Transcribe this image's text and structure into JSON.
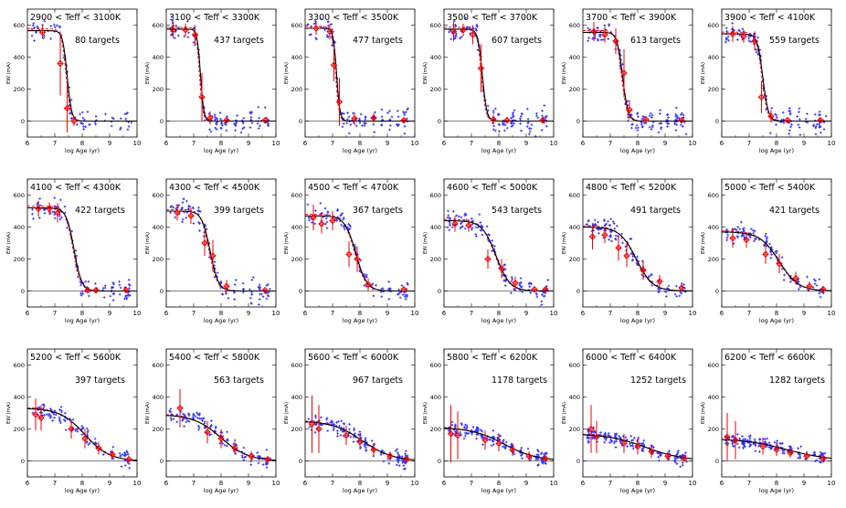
{
  "chart_data": {
    "type": "scatter",
    "xlabel": "log Age (yr)",
    "ylabel": "EW (mA)",
    "xlim": [
      6,
      10
    ],
    "ylim": [
      -100,
      700
    ],
    "xticks": [
      6,
      7,
      8,
      9,
      10
    ],
    "yticks": [
      0,
      200,
      400,
      600
    ],
    "colors": {
      "points": "#3333ff",
      "binned": "#ee0000",
      "fit": "#000000",
      "fit_dashed": "#ee0000"
    },
    "panels": [
      {
        "title": "2900 < Teff < 3100K",
        "count_label": "80 targets",
        "plateau": 565,
        "mid": 7.45,
        "width": 0.08,
        "bins": [
          [
            6.55,
            555,
            40
          ],
          [
            7.2,
            360,
            200
          ],
          [
            7.45,
            80,
            150
          ],
          [
            7.7,
            0,
            30
          ]
        ]
      },
      {
        "title": "3100 < Teff < 3300K",
        "count_label": "437 targets",
        "plateau": 575,
        "mid": 7.25,
        "width": 0.06,
        "bins": [
          [
            6.25,
            570,
            50
          ],
          [
            6.7,
            570,
            40
          ],
          [
            7.05,
            540,
            60
          ],
          [
            7.3,
            150,
            150
          ],
          [
            7.6,
            20,
            40
          ],
          [
            8.2,
            5,
            15
          ],
          [
            9.6,
            5,
            10
          ]
        ]
      },
      {
        "title": "3300 < Teff < 3500K",
        "count_label": "477 targets",
        "plateau": 580,
        "mid": 7.15,
        "width": 0.06,
        "bins": [
          [
            6.4,
            580,
            40
          ],
          [
            6.9,
            560,
            50
          ],
          [
            7.05,
            350,
            100
          ],
          [
            7.25,
            120,
            150
          ],
          [
            7.8,
            15,
            40
          ],
          [
            8.5,
            20,
            30
          ],
          [
            9.6,
            5,
            10
          ]
        ]
      },
      {
        "title": "3500 < Teff < 3700K",
        "count_label": "607 targets",
        "plateau": 575,
        "mid": 7.4,
        "width": 0.08,
        "bins": [
          [
            6.35,
            560,
            60
          ],
          [
            6.7,
            570,
            40
          ],
          [
            7.05,
            540,
            60
          ],
          [
            7.35,
            330,
            150
          ],
          [
            7.8,
            10,
            30
          ],
          [
            8.3,
            5,
            20
          ],
          [
            9.6,
            5,
            10
          ]
        ]
      },
      {
        "title": "3700 < Teff < 3900K",
        "count_label": "613 targets",
        "plateau": 555,
        "mid": 7.45,
        "width": 0.1,
        "bins": [
          [
            6.4,
            560,
            60
          ],
          [
            6.8,
            540,
            50
          ],
          [
            7.2,
            500,
            80
          ],
          [
            7.5,
            300,
            150
          ],
          [
            7.7,
            70,
            60
          ],
          [
            8.3,
            10,
            20
          ],
          [
            9.6,
            5,
            10
          ]
        ]
      },
      {
        "title": "3900 < Teff < 4100K",
        "count_label": "559 targets",
        "plateau": 545,
        "mid": 7.5,
        "width": 0.1,
        "bins": [
          [
            6.4,
            545,
            50
          ],
          [
            6.8,
            530,
            40
          ],
          [
            7.2,
            500,
            60
          ],
          [
            7.45,
            150,
            100
          ],
          [
            7.8,
            30,
            40
          ],
          [
            8.4,
            5,
            20
          ],
          [
            9.6,
            5,
            10
          ]
        ]
      },
      {
        "title": "4100 < Teff < 4300K",
        "count_label": "422 targets",
        "plateau": 520,
        "mid": 7.7,
        "width": 0.14,
        "bins": [
          [
            6.4,
            515,
            50
          ],
          [
            6.8,
            515,
            40
          ],
          [
            7.1,
            490,
            60
          ],
          [
            8.2,
            5,
            20
          ],
          [
            8.5,
            5,
            15
          ],
          [
            9.6,
            5,
            10
          ]
        ]
      },
      {
        "title": "4300 < Teff < 4500K",
        "count_label": "399 targets",
        "plateau": 500,
        "mid": 7.6,
        "width": 0.15,
        "bins": [
          [
            6.4,
            490,
            50
          ],
          [
            6.9,
            470,
            50
          ],
          [
            7.4,
            300,
            80
          ],
          [
            7.7,
            220,
            100
          ],
          [
            8.2,
            30,
            40
          ],
          [
            9.6,
            5,
            10
          ]
        ]
      },
      {
        "title": "4500 < Teff < 4700K",
        "count_label": "367 targets",
        "plateau": 470,
        "mid": 7.85,
        "width": 0.2,
        "bins": [
          [
            6.3,
            460,
            80
          ],
          [
            6.6,
            420,
            60
          ],
          [
            7.0,
            440,
            60
          ],
          [
            7.6,
            230,
            80
          ],
          [
            7.9,
            200,
            80
          ],
          [
            8.3,
            40,
            40
          ],
          [
            9.6,
            10,
            10
          ]
        ]
      },
      {
        "title": "4600 < Teff < 5000K",
        "count_label": "543 targets",
        "plateau": 440,
        "mid": 7.9,
        "width": 0.25,
        "bins": [
          [
            6.4,
            420,
            50
          ],
          [
            6.9,
            410,
            40
          ],
          [
            7.6,
            200,
            60
          ],
          [
            8.1,
            140,
            60
          ],
          [
            8.6,
            50,
            40
          ],
          [
            9.3,
            10,
            20
          ],
          [
            9.7,
            10,
            10
          ]
        ]
      },
      {
        "title": "4800 < Teff < 5200K",
        "count_label": "491 targets",
        "plateau": 400,
        "mid": 7.95,
        "width": 0.3,
        "bins": [
          [
            6.35,
            340,
            80
          ],
          [
            6.8,
            350,
            50
          ],
          [
            7.3,
            270,
            80
          ],
          [
            7.6,
            220,
            70
          ],
          [
            8.2,
            130,
            60
          ],
          [
            8.8,
            60,
            40
          ],
          [
            9.6,
            20,
            20
          ]
        ]
      },
      {
        "title": "5000 < Teff < 5400K",
        "count_label": "421 targets",
        "plateau": 370,
        "mid": 8.1,
        "width": 0.35,
        "bins": [
          [
            6.4,
            330,
            60
          ],
          [
            6.9,
            320,
            50
          ],
          [
            7.6,
            230,
            60
          ],
          [
            8.1,
            170,
            60
          ],
          [
            8.7,
            80,
            40
          ],
          [
            9.2,
            30,
            30
          ],
          [
            9.7,
            10,
            20
          ]
        ]
      },
      {
        "title": "5200 < Teff < 5600K",
        "count_label": "397 targets",
        "plateau": 330,
        "mid": 8.1,
        "width": 0.45,
        "bins": [
          [
            6.3,
            290,
            100
          ],
          [
            6.5,
            270,
            80
          ],
          [
            7.6,
            200,
            60
          ],
          [
            8.1,
            140,
            60
          ],
          [
            8.6,
            80,
            40
          ],
          [
            9.1,
            40,
            30
          ],
          [
            9.7,
            10,
            20
          ]
        ]
      },
      {
        "title": "5400 < Teff < 5800K",
        "count_label": "563 targets",
        "plateau": 290,
        "mid": 8.0,
        "width": 0.5,
        "bins": [
          [
            6.5,
            330,
            120
          ],
          [
            7.5,
            180,
            70
          ],
          [
            8.0,
            140,
            60
          ],
          [
            8.5,
            80,
            40
          ],
          [
            9.1,
            30,
            30
          ],
          [
            9.7,
            10,
            20
          ]
        ]
      },
      {
        "title": "5600 < Teff < 6000K",
        "count_label": "967 targets",
        "plateau": 250,
        "mid": 8.1,
        "width": 0.55,
        "bins": [
          [
            6.25,
            230,
            180
          ],
          [
            6.5,
            200,
            150
          ],
          [
            7.5,
            160,
            60
          ],
          [
            8.0,
            120,
            50
          ],
          [
            8.5,
            70,
            40
          ],
          [
            9.1,
            30,
            30
          ],
          [
            9.7,
            10,
            20
          ]
        ]
      },
      {
        "title": "5800 < Teff < 6200K",
        "count_label": "1178 targets",
        "plateau": 210,
        "mid": 8.2,
        "width": 0.6,
        "bins": [
          [
            6.25,
            170,
            180
          ],
          [
            6.5,
            160,
            150
          ],
          [
            7.5,
            130,
            60
          ],
          [
            8.0,
            110,
            50
          ],
          [
            8.5,
            70,
            40
          ],
          [
            9.1,
            30,
            30
          ],
          [
            9.7,
            15,
            20
          ]
        ]
      },
      {
        "title": "6000 < Teff < 6400K",
        "count_label": "1252 targets",
        "plateau": 170,
        "mid": 8.3,
        "width": 0.7,
        "bins": [
          [
            6.3,
            200,
            150
          ],
          [
            6.5,
            150,
            100
          ],
          [
            7.5,
            110,
            60
          ],
          [
            8.0,
            90,
            50
          ],
          [
            8.5,
            60,
            40
          ],
          [
            9.1,
            30,
            30
          ],
          [
            9.7,
            15,
            20
          ]
        ]
      },
      {
        "title": "6200 < Teff < 6600K",
        "count_label": "1282 targets",
        "plateau": 140,
        "mid": 8.4,
        "width": 0.8,
        "bins": [
          [
            6.2,
            150,
            150
          ],
          [
            6.5,
            130,
            120
          ],
          [
            7.5,
            90,
            50
          ],
          [
            8.0,
            70,
            40
          ],
          [
            8.5,
            50,
            30
          ],
          [
            9.1,
            30,
            30
          ],
          [
            9.7,
            15,
            20
          ]
        ]
      }
    ]
  }
}
